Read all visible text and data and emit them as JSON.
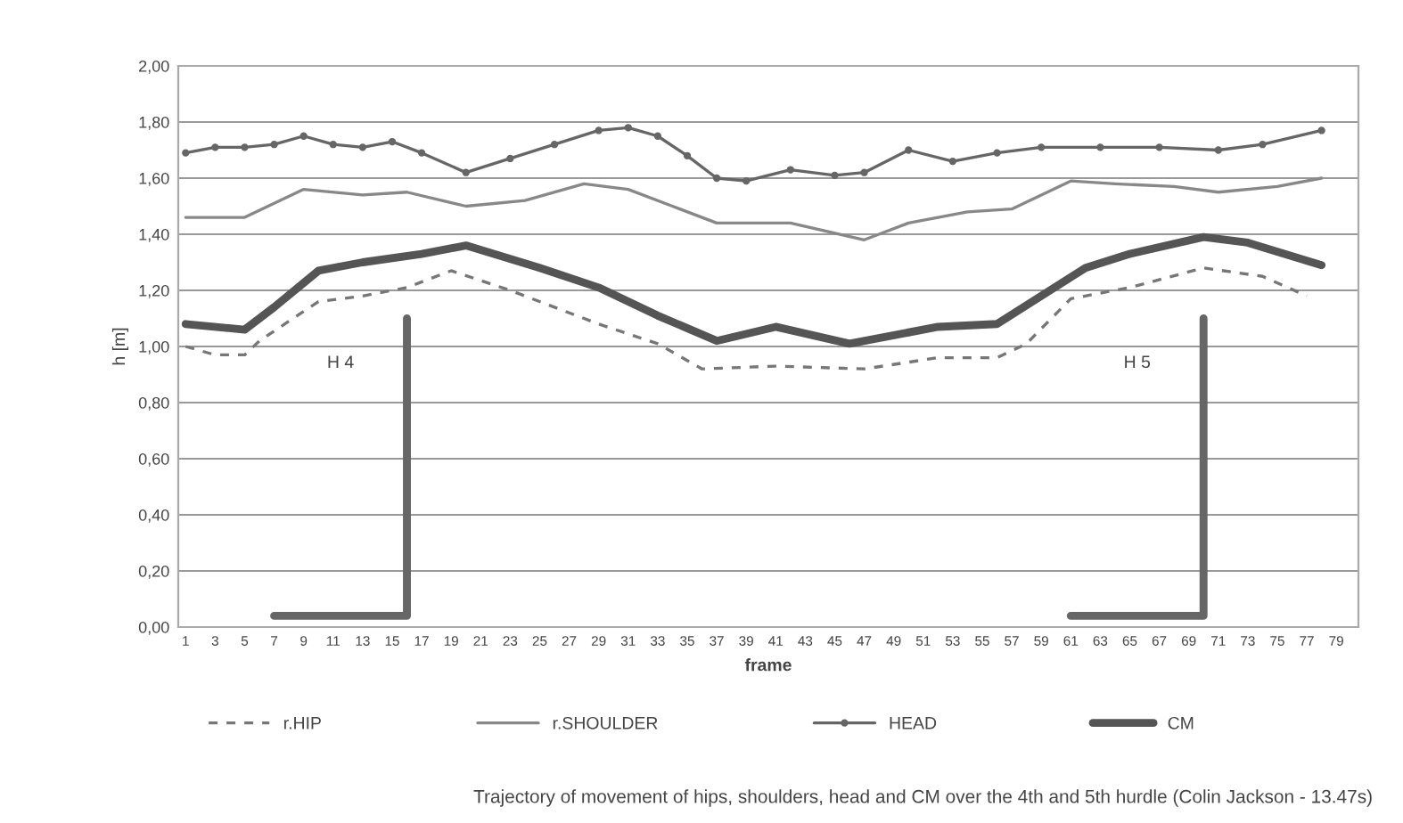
{
  "chart_data": {
    "type": "line",
    "xlabel": "frame",
    "ylabel": "h [m]",
    "xlim": [
      0.5,
      80.5
    ],
    "xticks": [
      1,
      3,
      5,
      7,
      9,
      11,
      13,
      15,
      17,
      19,
      21,
      23,
      25,
      27,
      29,
      31,
      33,
      35,
      37,
      39,
      41,
      43,
      45,
      47,
      49,
      51,
      53,
      55,
      57,
      59,
      61,
      63,
      65,
      67,
      69,
      71,
      73,
      75,
      77,
      79
    ],
    "ylim": [
      0,
      2
    ],
    "yticks": [
      {
        "value": 0,
        "label": "0,00"
      },
      {
        "value": 0.2,
        "label": "0,20"
      },
      {
        "value": 0.4,
        "label": "0,40"
      },
      {
        "value": 0.6,
        "label": "0,60"
      },
      {
        "value": 0.8,
        "label": "0,80"
      },
      {
        "value": 1.0,
        "label": "1,00"
      },
      {
        "value": 1.2,
        "label": "1,20"
      },
      {
        "value": 1.4,
        "label": "1,40"
      },
      {
        "value": 1.6,
        "label": "1,60"
      },
      {
        "value": 1.8,
        "label": "1,80"
      },
      {
        "value": 2.0,
        "label": "2,00"
      }
    ],
    "grid": "y",
    "legend": "bottom",
    "series": [
      {
        "name": "r.HIP",
        "color": "#777777",
        "line_style": "dashed",
        "marker": "none",
        "x": [
          1,
          3,
          5,
          6,
          10,
          13,
          16,
          19,
          23,
          29,
          33,
          36,
          41,
          47,
          52,
          56,
          58,
          61,
          65,
          70,
          74,
          77
        ],
        "values": [
          1.0,
          0.97,
          0.97,
          1.02,
          1.16,
          1.18,
          1.21,
          1.27,
          1.2,
          1.08,
          1.01,
          0.92,
          0.93,
          0.92,
          0.96,
          0.96,
          1.01,
          1.17,
          1.21,
          1.28,
          1.25,
          1.18
        ]
      },
      {
        "name": "r.SHOULDER",
        "color": "#888888",
        "line_style": "solid",
        "marker": "none",
        "x": [
          1,
          5,
          9,
          13,
          16,
          20,
          24,
          28,
          31,
          34,
          37,
          42,
          47,
          50,
          54,
          57,
          61,
          64,
          68,
          71,
          75,
          78
        ],
        "values": [
          1.46,
          1.46,
          1.56,
          1.54,
          1.55,
          1.5,
          1.52,
          1.58,
          1.56,
          1.5,
          1.44,
          1.44,
          1.38,
          1.44,
          1.48,
          1.49,
          1.59,
          1.58,
          1.57,
          1.55,
          1.57,
          1.6
        ]
      },
      {
        "name": "HEAD",
        "color": "#666666",
        "line_style": "solid",
        "marker": "circle",
        "x": [
          1,
          3,
          5,
          7,
          9,
          11,
          13,
          15,
          17,
          20,
          23,
          26,
          29,
          31,
          33,
          35,
          37,
          39,
          42,
          45,
          47,
          50,
          53,
          56,
          59,
          63,
          67,
          71,
          74,
          78
        ],
        "values": [
          1.69,
          1.71,
          1.71,
          1.72,
          1.75,
          1.72,
          1.71,
          1.73,
          1.69,
          1.62,
          1.67,
          1.72,
          1.77,
          1.78,
          1.75,
          1.68,
          1.6,
          1.59,
          1.63,
          1.61,
          1.62,
          1.7,
          1.66,
          1.69,
          1.71,
          1.71,
          1.71,
          1.7,
          1.72,
          1.77
        ]
      },
      {
        "name": "CM",
        "color": "#555555",
        "line_style": "solid",
        "marker": "none",
        "x": [
          1,
          5,
          7,
          10,
          13,
          17,
          20,
          25,
          29,
          33,
          37,
          41,
          46,
          52,
          56,
          62,
          65,
          70,
          73,
          78
        ],
        "values": [
          1.08,
          1.06,
          1.14,
          1.27,
          1.3,
          1.33,
          1.36,
          1.28,
          1.21,
          1.11,
          1.02,
          1.07,
          1.01,
          1.07,
          1.08,
          1.28,
          1.33,
          1.39,
          1.37,
          1.29
        ]
      },
      {
        "color": "#666666",
        "line_style": "solid",
        "marker": "none",
        "x": [
          7,
          16,
          16
        ],
        "values": [
          0.04,
          0.04,
          1.1
        ]
      },
      {
        "color": "#666666",
        "line_style": "solid",
        "marker": "none",
        "x": [
          61,
          70,
          70
        ],
        "values": [
          0.04,
          0.04,
          1.1
        ]
      }
    ],
    "annotations": [
      "H 4",
      "H 5",
      "Trajectory of movement of hips, shoulders, head and CM over the 4th and 5th hurdle (Colin Jackson - 13.47s)"
    ]
  }
}
